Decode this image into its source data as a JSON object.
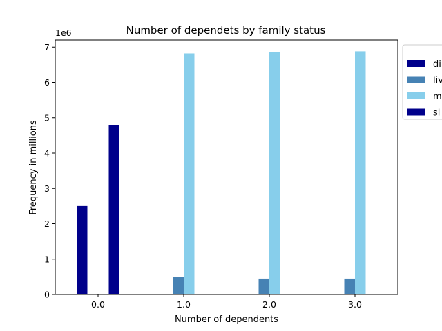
{
  "chart_data": {
    "type": "bar",
    "title": "Number of dependets by family status",
    "xlabel": "Number of dependents",
    "ylabel": "Frequency in millions",
    "offset_text": "1e6",
    "categories": [
      "0.0",
      "1.0",
      "2.0",
      "3.0"
    ],
    "ylim": [
      0,
      7.2
    ],
    "yticks": [
      0,
      1,
      2,
      3,
      4,
      5,
      6,
      7
    ],
    "y_scale_note": "values in units of 1e6",
    "grid": false,
    "legend_position": "outside-right (clipped)",
    "series": [
      {
        "name": "di",
        "color": "#00008b",
        "values": [
          2.5,
          null,
          null,
          null
        ]
      },
      {
        "name": "liv",
        "color": "#4682b4",
        "values": [
          null,
          0.5,
          0.45,
          0.45
        ]
      },
      {
        "name": "m",
        "color": "#87ceeb",
        "values": [
          null,
          6.82,
          6.86,
          6.88
        ]
      },
      {
        "name": "si",
        "color": "#00008b",
        "values": [
          4.8,
          null,
          null,
          null
        ]
      }
    ]
  }
}
